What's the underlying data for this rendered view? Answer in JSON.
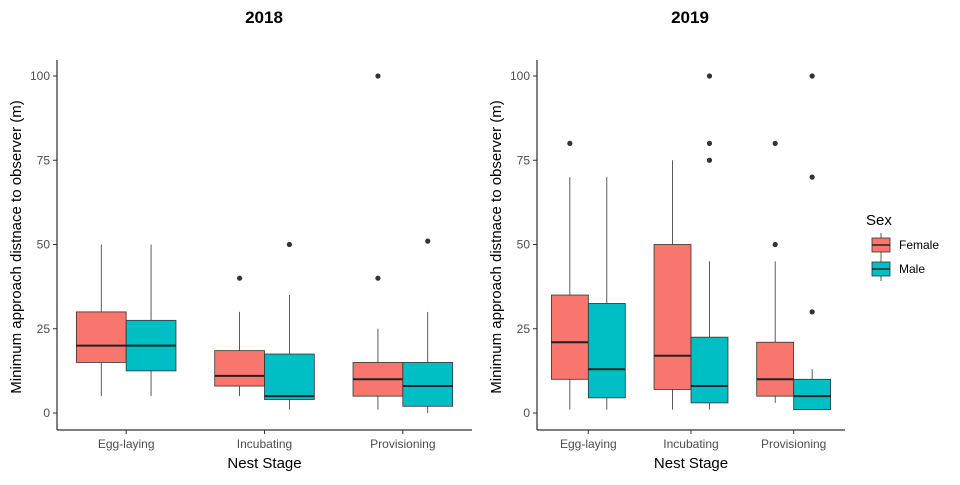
{
  "chart_data": [
    {
      "type": "boxplot",
      "title": "2018",
      "xlabel": "Nest Stage",
      "ylabel": "Minimum approach distnace to observer (m)",
      "categories": [
        "Egg-laying",
        "Incubating",
        "Provisioning"
      ],
      "ylim": [
        -5,
        105
      ],
      "yticks": [
        "0",
        "25",
        "50",
        "75",
        "100"
      ],
      "series": [
        {
          "name": "Female",
          "color": "#F8766D",
          "boxes": [
            {
              "min": 5,
              "q1": 15,
              "median": 20,
              "q3": 30,
              "max": 50,
              "outliers": []
            },
            {
              "min": 5,
              "q1": 8,
              "median": 11,
              "q3": 18.5,
              "max": 30,
              "outliers": [
                40
              ]
            },
            {
              "min": 1,
              "q1": 5,
              "median": 10,
              "q3": 15,
              "max": 25,
              "outliers": [
                40,
                100
              ]
            }
          ]
        },
        {
          "name": "Male",
          "color": "#00BFC4",
          "boxes": [
            {
              "min": 5,
              "q1": 12.5,
              "median": 20,
              "q3": 27.5,
              "max": 50,
              "outliers": []
            },
            {
              "min": 1,
              "q1": 4,
              "median": 5,
              "q3": 17.5,
              "max": 35,
              "outliers": [
                50
              ]
            },
            {
              "min": 0,
              "q1": 2,
              "median": 8,
              "q3": 15,
              "max": 30,
              "outliers": [
                51
              ]
            }
          ]
        }
      ]
    },
    {
      "type": "boxplot",
      "title": "2019",
      "xlabel": "Nest Stage",
      "ylabel": "Minimum approach distnace to observer (m)",
      "categories": [
        "Egg-laying",
        "Incubating",
        "Provisioning"
      ],
      "ylim": [
        -5,
        105
      ],
      "yticks": [
        "0",
        "25",
        "50",
        "75",
        "100"
      ],
      "series": [
        {
          "name": "Female",
          "color": "#F8766D",
          "boxes": [
            {
              "min": 1,
              "q1": 10,
              "median": 21,
              "q3": 35,
              "max": 70,
              "outliers": [
                80
              ]
            },
            {
              "min": 1,
              "q1": 7,
              "median": 17,
              "q3": 50,
              "max": 75,
              "outliers": []
            },
            {
              "min": 3,
              "q1": 5,
              "median": 10,
              "q3": 21,
              "max": 45,
              "outliers": [
                50,
                80
              ]
            }
          ]
        },
        {
          "name": "Male",
          "color": "#00BFC4",
          "boxes": [
            {
              "min": 1,
              "q1": 4.5,
              "median": 13,
              "q3": 32.5,
              "max": 70,
              "outliers": []
            },
            {
              "min": 1,
              "q1": 3,
              "median": 8,
              "q3": 22.5,
              "max": 45,
              "outliers": [
                75,
                80,
                100
              ]
            },
            {
              "min": 1,
              "q1": 1,
              "median": 5,
              "q3": 10,
              "max": 13,
              "outliers": [
                30,
                70,
                100
              ]
            }
          ]
        }
      ]
    }
  ],
  "legend": {
    "title": "Sex",
    "items": [
      {
        "label": "Female",
        "color": "#F8766D"
      },
      {
        "label": "Male",
        "color": "#00BFC4"
      }
    ]
  }
}
